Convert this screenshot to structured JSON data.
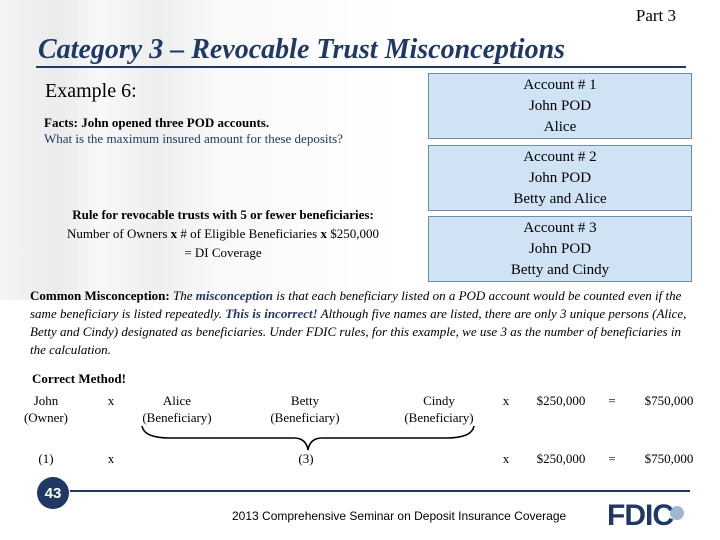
{
  "header": {
    "part": "Part 3",
    "title": "Category 3 – Revocable Trust Misconceptions"
  },
  "example": {
    "heading": "Example 6:",
    "facts_label": "Facts:",
    "facts_line1": " John opened three POD accounts.",
    "facts_line2": "What is the maximum insured amount for these deposits?"
  },
  "rule": {
    "line1": "Rule for revocable trusts with 5 or fewer beneficiaries:",
    "line2_a": "Number of Owners ",
    "line2_x1": "x",
    "line2_b": " # of Eligible Beneficiaries ",
    "line2_x2": "x",
    "line2_c": " $250,000",
    "line3": "= DI Coverage"
  },
  "accounts": [
    {
      "line1": "Account # 1",
      "line2": "John POD",
      "line3": "Alice"
    },
    {
      "line1": "Account # 2",
      "line2": "John POD",
      "line3": "Betty and Alice"
    },
    {
      "line1": "Account # 3",
      "line2": "John POD",
      "line3": "Betty and Cindy"
    }
  ],
  "misconception": {
    "lead": "Common Misconception:",
    "text_a": " The ",
    "emph": "misconception",
    "text_b": " is that each beneficiary listed on a POD account would be counted even if the same beneficiary is listed repeatedly. ",
    "incorrect": "This is incorrect!",
    "text_c": " Although five names are listed, there are only 3 unique persons (Alice, Betty and Cindy) designated as beneficiaries.  Under FDIC rules, for this example, we use 3 as the number of beneficiaries in the calculation."
  },
  "method": {
    "label": "Correct Method!",
    "row1": {
      "owner": "John",
      "owner_role": "(Owner)",
      "x1": "x",
      "b1": "Alice",
      "b1_role": "(Beneficiary)",
      "b2": "Betty",
      "b2_role": "(Beneficiary)",
      "b3": "Cindy",
      "b3_role": "(Beneficiary)",
      "x2": "x",
      "amount": "$250,000",
      "eq": "=",
      "total": "$750,000"
    },
    "row2": {
      "owner": "(1)",
      "x1": "x",
      "count": "(3)",
      "x2": "x",
      "amount": "$250,000",
      "eq": "=",
      "total": "$750,000"
    }
  },
  "footer": {
    "page": "43",
    "text": "2013 Comprehensive Seminar on Deposit Insurance Coverage",
    "logo": "FDIC"
  },
  "colors": {
    "navy": "#1f3864",
    "box_fill": "#cfe3f5"
  }
}
